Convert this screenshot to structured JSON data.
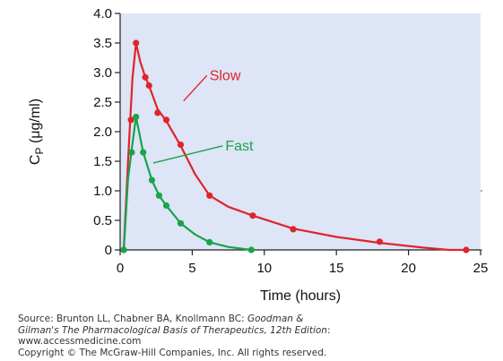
{
  "chart_data": {
    "type": "line",
    "ylabel_base": "C",
    "ylabel_sub": "P",
    "ylabel_rest": " (μg/ml)",
    "xlabel": "Time (hours)",
    "xlim": [
      0,
      25
    ],
    "ylim": [
      0,
      4.0
    ],
    "xticks": [
      0,
      5,
      10,
      15,
      20,
      25
    ],
    "yticks": [
      "0",
      "0.5",
      "1.0",
      "1.5",
      "2.0",
      "2.5",
      "3.0",
      "3.5",
      "4.0"
    ],
    "grid": false,
    "background_color": "#dde5f6",
    "series": [
      {
        "name": "Slow",
        "color": "#e0242c",
        "points": [
          [
            0.25,
            0.0
          ],
          [
            0.75,
            2.2
          ],
          [
            1.1,
            3.5
          ],
          [
            1.75,
            2.92
          ],
          [
            2.0,
            2.78
          ],
          [
            2.6,
            2.32
          ],
          [
            3.2,
            2.2
          ],
          [
            4.2,
            1.78
          ],
          [
            6.2,
            0.92
          ],
          [
            9.2,
            0.58
          ],
          [
            12.0,
            0.35
          ],
          [
            18.0,
            0.14
          ],
          [
            24.0,
            0.0
          ]
        ],
        "curve": [
          [
            0.25,
            0.0
          ],
          [
            0.55,
            1.5
          ],
          [
            0.85,
            2.9
          ],
          [
            1.1,
            3.5
          ],
          [
            1.4,
            3.18
          ],
          [
            1.75,
            2.92
          ],
          [
            2.0,
            2.78
          ],
          [
            2.6,
            2.38
          ],
          [
            3.2,
            2.18
          ],
          [
            4.2,
            1.76
          ],
          [
            5.2,
            1.28
          ],
          [
            6.2,
            0.92
          ],
          [
            7.5,
            0.73
          ],
          [
            9.2,
            0.58
          ],
          [
            12.0,
            0.36
          ],
          [
            15.0,
            0.22
          ],
          [
            18.0,
            0.12
          ],
          [
            21.0,
            0.04
          ],
          [
            22.8,
            0.0
          ],
          [
            24.0,
            0.0
          ]
        ]
      },
      {
        "name": "Fast",
        "color": "#1aa34a",
        "points": [
          [
            0.25,
            0.0
          ],
          [
            0.8,
            1.65
          ],
          [
            1.1,
            2.25
          ],
          [
            1.6,
            1.65
          ],
          [
            2.2,
            1.18
          ],
          [
            2.7,
            0.92
          ],
          [
            3.2,
            0.75
          ],
          [
            4.2,
            0.45
          ],
          [
            6.2,
            0.13
          ],
          [
            9.1,
            0.0
          ]
        ],
        "curve": [
          [
            0.25,
            0.0
          ],
          [
            0.55,
            1.2
          ],
          [
            0.8,
            1.7
          ],
          [
            1.1,
            2.25
          ],
          [
            1.6,
            1.65
          ],
          [
            2.2,
            1.18
          ],
          [
            2.7,
            0.92
          ],
          [
            3.2,
            0.75
          ],
          [
            4.2,
            0.45
          ],
          [
            5.2,
            0.26
          ],
          [
            6.2,
            0.13
          ],
          [
            7.5,
            0.05
          ],
          [
            9.1,
            0.0
          ]
        ]
      }
    ],
    "annotations": [
      {
        "text": "Slow",
        "series": 0,
        "points_to": [
          4.4,
          2.52
        ],
        "label_at": [
          6.2,
          2.95
        ]
      },
      {
        "text": "Fast",
        "series": 1,
        "points_to": [
          2.3,
          1.47
        ],
        "label_at": [
          7.3,
          1.76
        ]
      }
    ]
  },
  "footer": {
    "line1_plain": "Source: Brunton LL, Chabner BA, Knollmann BC: ",
    "line1_italic": "Goodman &",
    "line2_italic": "Gilman's The Pharmacological Basis of Therapeutics, 12th Edition",
    "line2_plain": ":",
    "line3": "www.accessmedicine.com",
    "line4": "Copyright © The McGraw-Hill Companies, Inc. All rights reserved."
  }
}
